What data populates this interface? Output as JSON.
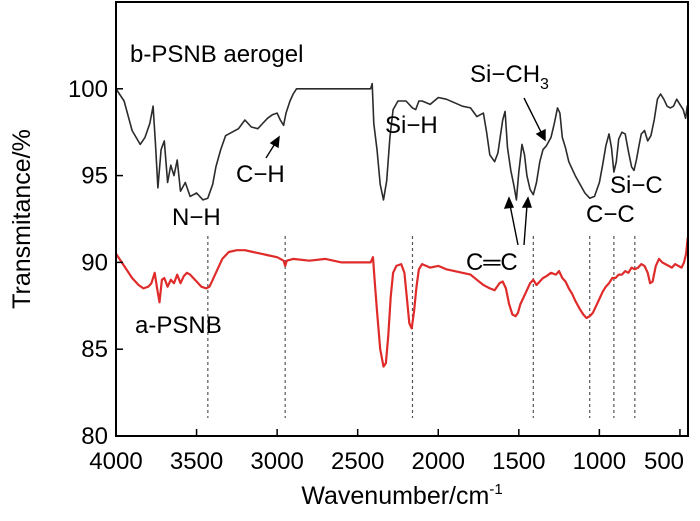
{
  "chart_data": {
    "type": "line",
    "xlabel": "Wavenumber/cm",
    "xlabel_sup": "-1",
    "ylabel": "Transmitance/%",
    "xlim": [
      4000,
      450
    ],
    "ylim": [
      80,
      105
    ],
    "x_reversed": true,
    "xticks": [
      4000,
      3500,
      3000,
      2500,
      2000,
      1500,
      1000,
      500
    ],
    "yticks": [
      80,
      85,
      90,
      95,
      100
    ],
    "grid": false,
    "series": [
      {
        "name": "b-PSNB aerogel",
        "color": "#2b2b2b",
        "points": [
          [
            4000,
            100
          ],
          [
            3950,
            99.3
          ],
          [
            3900,
            97.6
          ],
          [
            3850,
            96.8
          ],
          [
            3820,
            97.2
          ],
          [
            3790,
            98.0
          ],
          [
            3770,
            99.0
          ],
          [
            3755,
            96.8
          ],
          [
            3740,
            94.3
          ],
          [
            3720,
            96.5
          ],
          [
            3700,
            97.0
          ],
          [
            3680,
            94.6
          ],
          [
            3660,
            95.6
          ],
          [
            3640,
            95.0
          ],
          [
            3620,
            95.9
          ],
          [
            3600,
            94.1
          ],
          [
            3570,
            94.6
          ],
          [
            3540,
            93.8
          ],
          [
            3500,
            94.0
          ],
          [
            3460,
            93.6
          ],
          [
            3430,
            93.7
          ],
          [
            3400,
            94.5
          ],
          [
            3380,
            95.5
          ],
          [
            3350,
            96.5
          ],
          [
            3320,
            97.3
          ],
          [
            3280,
            97.5
          ],
          [
            3240,
            97.7
          ],
          [
            3200,
            98.2
          ],
          [
            3160,
            97.8
          ],
          [
            3120,
            97.7
          ],
          [
            3090,
            98.0
          ],
          [
            3060,
            98.3
          ],
          [
            3030,
            98.5
          ],
          [
            3000,
            98.6
          ],
          [
            2980,
            98.2
          ],
          [
            2960,
            97.9
          ],
          [
            2945,
            98.6
          ],
          [
            2920,
            99.3
          ],
          [
            2900,
            99.7
          ],
          [
            2880,
            100.0
          ],
          [
            2800,
            100.0
          ],
          [
            2700,
            100.0
          ],
          [
            2600,
            100.0
          ],
          [
            2500,
            100.0
          ],
          [
            2420,
            100.0
          ],
          [
            2410,
            100.3
          ],
          [
            2400,
            98.0
          ],
          [
            2380,
            96.5
          ],
          [
            2360,
            94.5
          ],
          [
            2340,
            93.6
          ],
          [
            2320,
            94.7
          ],
          [
            2300,
            97.2
          ],
          [
            2280,
            98.8
          ],
          [
            2250,
            99.3
          ],
          [
            2200,
            99.3
          ],
          [
            2160,
            98.9
          ],
          [
            2140,
            98.8
          ],
          [
            2120,
            99.3
          ],
          [
            2100,
            99.3
          ],
          [
            2050,
            99.1
          ],
          [
            2000,
            99.5
          ],
          [
            1950,
            99.4
          ],
          [
            1900,
            99.2
          ],
          [
            1850,
            99.0
          ],
          [
            1800,
            98.9
          ],
          [
            1760,
            98.4
          ],
          [
            1720,
            98.6
          ],
          [
            1700,
            97.5
          ],
          [
            1680,
            96.2
          ],
          [
            1650,
            95.8
          ],
          [
            1630,
            96.3
          ],
          [
            1600,
            98.2
          ],
          [
            1585,
            98.7
          ],
          [
            1570,
            96.6
          ],
          [
            1550,
            95.3
          ],
          [
            1530,
            94.4
          ],
          [
            1515,
            93.6
          ],
          [
            1500,
            95.2
          ],
          [
            1480,
            96.8
          ],
          [
            1465,
            96.2
          ],
          [
            1450,
            95.0
          ],
          [
            1430,
            94.2
          ],
          [
            1410,
            93.9
          ],
          [
            1390,
            94.6
          ],
          [
            1370,
            95.8
          ],
          [
            1350,
            96.5
          ],
          [
            1330,
            96.7
          ],
          [
            1300,
            97.2
          ],
          [
            1280,
            98.0
          ],
          [
            1260,
            98.9
          ],
          [
            1245,
            98.6
          ],
          [
            1230,
            97.2
          ],
          [
            1210,
            96.6
          ],
          [
            1190,
            95.8
          ],
          [
            1170,
            95.4
          ],
          [
            1150,
            95.0
          ],
          [
            1120,
            94.5
          ],
          [
            1090,
            94.0
          ],
          [
            1060,
            93.7
          ],
          [
            1030,
            93.8
          ],
          [
            1000,
            94.6
          ],
          [
            980,
            95.6
          ],
          [
            960,
            96.7
          ],
          [
            940,
            97.4
          ],
          [
            925,
            96.6
          ],
          [
            910,
            95.2
          ],
          [
            895,
            95.8
          ],
          [
            880,
            97.1
          ],
          [
            860,
            97.5
          ],
          [
            840,
            97.4
          ],
          [
            820,
            96.4
          ],
          [
            800,
            95.5
          ],
          [
            785,
            95.3
          ],
          [
            770,
            95.9
          ],
          [
            755,
            96.7
          ],
          [
            740,
            97.4
          ],
          [
            720,
            97.6
          ],
          [
            700,
            97.0
          ],
          [
            680,
            97.3
          ],
          [
            660,
            98.2
          ],
          [
            640,
            99.4
          ],
          [
            620,
            99.7
          ],
          [
            600,
            99.4
          ],
          [
            580,
            99.0
          ],
          [
            560,
            98.9
          ],
          [
            540,
            99.0
          ],
          [
            520,
            99.4
          ],
          [
            500,
            99.1
          ],
          [
            480,
            98.8
          ],
          [
            465,
            98.3
          ],
          [
            455,
            99.0
          ],
          [
            450,
            99.1
          ]
        ]
      },
      {
        "name": "a-PSNB",
        "color": "#e02b2b",
        "points": [
          [
            4000,
            90.5
          ],
          [
            3950,
            89.8
          ],
          [
            3900,
            89.1
          ],
          [
            3860,
            88.7
          ],
          [
            3830,
            88.5
          ],
          [
            3800,
            88.6
          ],
          [
            3780,
            88.8
          ],
          [
            3760,
            89.4
          ],
          [
            3745,
            88.5
          ],
          [
            3730,
            87.7
          ],
          [
            3715,
            89.0
          ],
          [
            3700,
            89.1
          ],
          [
            3680,
            88.6
          ],
          [
            3660,
            89.0
          ],
          [
            3640,
            88.8
          ],
          [
            3620,
            89.3
          ],
          [
            3600,
            88.8
          ],
          [
            3580,
            89.2
          ],
          [
            3560,
            89.4
          ],
          [
            3540,
            89.3
          ],
          [
            3520,
            89.1
          ],
          [
            3500,
            88.9
          ],
          [
            3470,
            88.6
          ],
          [
            3440,
            88.5
          ],
          [
            3420,
            88.6
          ],
          [
            3400,
            89.0
          ],
          [
            3370,
            89.6
          ],
          [
            3340,
            90.2
          ],
          [
            3300,
            90.6
          ],
          [
            3250,
            90.7
          ],
          [
            3200,
            90.7
          ],
          [
            3150,
            90.6
          ],
          [
            3100,
            90.5
          ],
          [
            3050,
            90.4
          ],
          [
            3000,
            90.3
          ],
          [
            2960,
            90.1
          ],
          [
            2950,
            89.8
          ],
          [
            2940,
            90.1
          ],
          [
            2900,
            90.2
          ],
          [
            2800,
            90.1
          ],
          [
            2700,
            90.2
          ],
          [
            2600,
            90.0
          ],
          [
            2500,
            90.0
          ],
          [
            2420,
            90.0
          ],
          [
            2405,
            90.3
          ],
          [
            2395,
            89.0
          ],
          [
            2380,
            87.2
          ],
          [
            2360,
            85.0
          ],
          [
            2340,
            84.0
          ],
          [
            2325,
            84.2
          ],
          [
            2310,
            85.8
          ],
          [
            2295,
            88.0
          ],
          [
            2280,
            89.4
          ],
          [
            2260,
            89.8
          ],
          [
            2230,
            89.9
          ],
          [
            2210,
            89.4
          ],
          [
            2195,
            88.0
          ],
          [
            2180,
            86.5
          ],
          [
            2165,
            86.2
          ],
          [
            2150,
            87.2
          ],
          [
            2135,
            88.6
          ],
          [
            2120,
            89.6
          ],
          [
            2100,
            89.9
          ],
          [
            2050,
            89.7
          ],
          [
            2000,
            89.8
          ],
          [
            1950,
            89.6
          ],
          [
            1900,
            89.5
          ],
          [
            1850,
            89.4
          ],
          [
            1800,
            89.3
          ],
          [
            1760,
            89.0
          ],
          [
            1720,
            88.7
          ],
          [
            1700,
            88.6
          ],
          [
            1680,
            88.5
          ],
          [
            1650,
            88.4
          ],
          [
            1620,
            88.8
          ],
          [
            1600,
            88.9
          ],
          [
            1580,
            88.5
          ],
          [
            1560,
            87.6
          ],
          [
            1540,
            87.0
          ],
          [
            1520,
            86.9
          ],
          [
            1505,
            87.1
          ],
          [
            1490,
            87.6
          ],
          [
            1470,
            88.0
          ],
          [
            1450,
            88.4
          ],
          [
            1430,
            88.8
          ],
          [
            1410,
            89.0
          ],
          [
            1390,
            88.7
          ],
          [
            1370,
            88.9
          ],
          [
            1350,
            89.1
          ],
          [
            1330,
            89.2
          ],
          [
            1300,
            89.4
          ],
          [
            1270,
            89.3
          ],
          [
            1250,
            89.5
          ],
          [
            1230,
            89.1
          ],
          [
            1210,
            88.9
          ],
          [
            1190,
            88.5
          ],
          [
            1170,
            88.2
          ],
          [
            1150,
            87.8
          ],
          [
            1120,
            87.3
          ],
          [
            1100,
            87.0
          ],
          [
            1080,
            86.8
          ],
          [
            1060,
            86.9
          ],
          [
            1040,
            87.1
          ],
          [
            1020,
            87.5
          ],
          [
            1000,
            87.9
          ],
          [
            980,
            88.3
          ],
          [
            960,
            88.6
          ],
          [
            940,
            88.8
          ],
          [
            920,
            89.1
          ],
          [
            900,
            89.1
          ],
          [
            880,
            89.3
          ],
          [
            860,
            89.3
          ],
          [
            840,
            89.5
          ],
          [
            820,
            89.4
          ],
          [
            800,
            89.7
          ],
          [
            780,
            89.6
          ],
          [
            760,
            89.7
          ],
          [
            740,
            89.9
          ],
          [
            720,
            89.8
          ],
          [
            700,
            89.4
          ],
          [
            685,
            88.8
          ],
          [
            670,
            88.9
          ],
          [
            650,
            89.8
          ],
          [
            630,
            90.2
          ],
          [
            610,
            90.0
          ],
          [
            590,
            89.9
          ],
          [
            570,
            89.8
          ],
          [
            550,
            89.7
          ],
          [
            530,
            89.9
          ],
          [
            510,
            89.8
          ],
          [
            490,
            89.7
          ],
          [
            475,
            90.0
          ],
          [
            462,
            90.5
          ],
          [
            452,
            91.4
          ],
          [
            450,
            91.3
          ]
        ]
      }
    ],
    "reference_lines_x": [
      3430,
      2950,
      2160,
      1410,
      1060,
      910,
      780
    ],
    "labels": {
      "b_series": "b-PSNB aerogel",
      "a_series": "a-PSNB",
      "nh": "N−H",
      "ch": "C−H",
      "sih": "Si−H",
      "sich3": "Si−CH",
      "sich3_sub": "3",
      "cc_double": "C═C",
      "cc": "C−C",
      "sic": "Si−C"
    }
  }
}
